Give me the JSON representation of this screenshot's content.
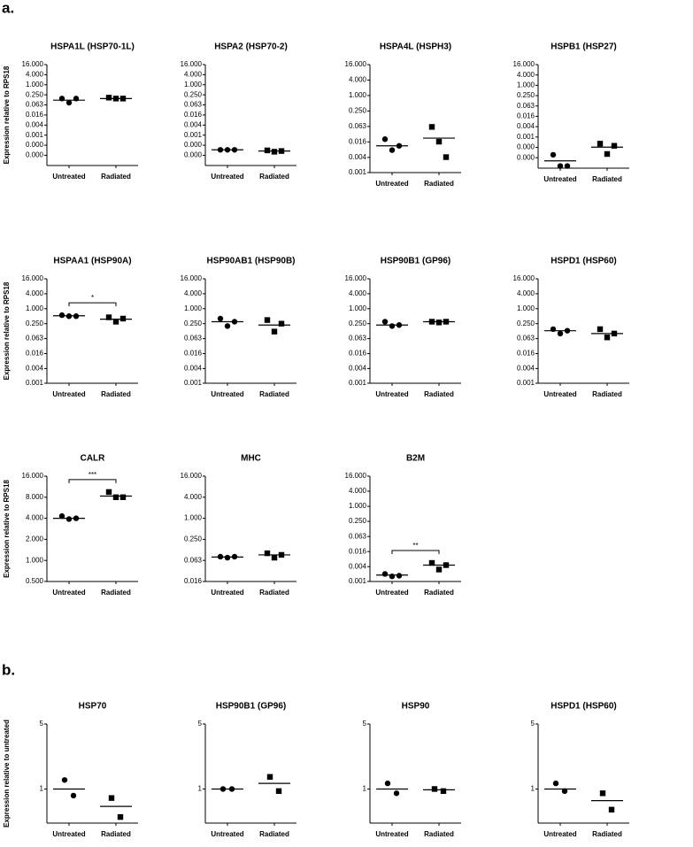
{
  "panel_labels": [
    "a.",
    "b."
  ],
  "chart_data": [
    {
      "type": "dot",
      "title": "HSPA1L (HSP70-1L)",
      "ylabel": "Expression relative to RPS18",
      "log": true,
      "ylim": [
        1.5e-05,
        16
      ],
      "yticks": [
        {
          "value": 16,
          "label": "16.000"
        },
        {
          "value": 4,
          "label": "4.000"
        },
        {
          "value": 1,
          "label": "1.000"
        },
        {
          "value": 0.25,
          "label": "0.250"
        },
        {
          "value": 0.0625,
          "label": "0.063"
        },
        {
          "value": 0.015625,
          "label": "0.016"
        },
        {
          "value": 0.00390625,
          "label": "0.004"
        },
        {
          "value": 0.0009765625,
          "label": "0.001"
        },
        {
          "value": 0.000244140625,
          "label": "0.000"
        },
        {
          "value": 6.103515625e-05,
          "label": "0.000"
        }
      ],
      "categories": [
        "Untreated",
        "Radiated"
      ],
      "points": [
        [
          0.15,
          0.085,
          0.15
        ],
        [
          0.17,
          0.15,
          0.15
        ]
      ],
      "means": [
        0.12,
        0.15
      ]
    },
    {
      "type": "dot",
      "title": "HSPA2 (HSP70-2)",
      "log": true,
      "ylim": [
        1.5e-05,
        16
      ],
      "yticks": [
        {
          "value": 16,
          "label": "16.000"
        },
        {
          "value": 4,
          "label": "4.000"
        },
        {
          "value": 1,
          "label": "1.000"
        },
        {
          "value": 0.25,
          "label": "0.250"
        },
        {
          "value": 0.0625,
          "label": "0.063"
        },
        {
          "value": 0.015625,
          "label": "0.016"
        },
        {
          "value": 0.00390625,
          "label": "0.004"
        },
        {
          "value": 0.0009765625,
          "label": "0.001"
        },
        {
          "value": 0.000244140625,
          "label": "0.000"
        },
        {
          "value": 6.103515625e-05,
          "label": "0.000"
        }
      ],
      "categories": [
        "Untreated",
        "Radiated"
      ],
      "points": [
        [
          0.00013,
          0.00013,
          0.00013
        ],
        [
          0.00012,
          0.0001,
          0.00011
        ]
      ],
      "means": [
        0.00013,
        0.00011
      ]
    },
    {
      "type": "dot",
      "title": "HSPA4L (HSPH3)",
      "log": true,
      "ylim": [
        0.001,
        16
      ],
      "yticks": [
        {
          "value": 16,
          "label": "16.000"
        },
        {
          "value": 4,
          "label": "4.000"
        },
        {
          "value": 1,
          "label": "1.000"
        },
        {
          "value": 0.25,
          "label": "0.250"
        },
        {
          "value": 0.0625,
          "label": "0.063"
        },
        {
          "value": 0.015625,
          "label": "0.016"
        },
        {
          "value": 0.00390625,
          "label": "0.004"
        },
        {
          "value": 0.001,
          "label": "0.001"
        }
      ],
      "categories": [
        "Untreated",
        "Radiated"
      ],
      "points": [
        [
          0.02,
          0.0075,
          0.011
        ],
        [
          0.06,
          0.016,
          0.004
        ]
      ],
      "means": [
        0.011,
        0.022
      ]
    },
    {
      "type": "dot",
      "title": "HSPB1 (HSP27)",
      "log": true,
      "ylim": [
        1.5e-05,
        16
      ],
      "yticks": [
        {
          "value": 16,
          "label": "16.000"
        },
        {
          "value": 4,
          "label": "4.000"
        },
        {
          "value": 1,
          "label": "1.000"
        },
        {
          "value": 0.25,
          "label": "0.250"
        },
        {
          "value": 0.0625,
          "label": "0.063"
        },
        {
          "value": 0.015625,
          "label": "0.016"
        },
        {
          "value": 0.00390625,
          "label": "0.004"
        },
        {
          "value": 0.0009765625,
          "label": "0.001"
        },
        {
          "value": 0.000244140625,
          "label": "0.000"
        },
        {
          "value": 6.103515625e-05,
          "label": "0.000"
        }
      ],
      "categories": [
        "Untreated",
        "Radiated"
      ],
      "points": [
        [
          9e-05,
          2e-05,
          2e-05
        ],
        [
          0.0004,
          0.0001,
          0.0003
        ]
      ],
      "means": [
        4e-05,
        0.00025
      ]
    },
    {
      "type": "dot",
      "title": "HSPAA1 (HSP90A)",
      "ylabel": "Expression relative to RPS18",
      "log": true,
      "ylim": [
        0.001,
        16
      ],
      "yticks": [
        {
          "value": 16,
          "label": "16.000"
        },
        {
          "value": 4,
          "label": "4.000"
        },
        {
          "value": 1,
          "label": "1.000"
        },
        {
          "value": 0.25,
          "label": "0.250"
        },
        {
          "value": 0.0625,
          "label": "0.063"
        },
        {
          "value": 0.015625,
          "label": "0.016"
        },
        {
          "value": 0.00390625,
          "label": "0.004"
        },
        {
          "value": 0.001,
          "label": "0.001"
        }
      ],
      "categories": [
        "Untreated",
        "Radiated"
      ],
      "points": [
        [
          0.55,
          0.5,
          0.5
        ],
        [
          0.45,
          0.3,
          0.4
        ]
      ],
      "means": [
        0.52,
        0.38
      ],
      "significance": "*"
    },
    {
      "type": "dot",
      "title": "HSP90AB1 (HSP90B)",
      "log": true,
      "ylim": [
        0.001,
        16
      ],
      "yticks": [
        {
          "value": 16,
          "label": "16.000"
        },
        {
          "value": 4,
          "label": "4.000"
        },
        {
          "value": 1,
          "label": "1.000"
        },
        {
          "value": 0.25,
          "label": "0.250"
        },
        {
          "value": 0.0625,
          "label": "0.063"
        },
        {
          "value": 0.015625,
          "label": "0.016"
        },
        {
          "value": 0.00390625,
          "label": "0.004"
        },
        {
          "value": 0.001,
          "label": "0.001"
        }
      ],
      "categories": [
        "Untreated",
        "Radiated"
      ],
      "points": [
        [
          0.4,
          0.2,
          0.3
        ],
        [
          0.35,
          0.12,
          0.25
        ]
      ],
      "means": [
        0.3,
        0.22
      ]
    },
    {
      "type": "dot",
      "title": "HSP90B1 (GP96)",
      "log": true,
      "ylim": [
        0.001,
        16
      ],
      "yticks": [
        {
          "value": 16,
          "label": "16.000"
        },
        {
          "value": 4,
          "label": "4.000"
        },
        {
          "value": 1,
          "label": "1.000"
        },
        {
          "value": 0.25,
          "label": "0.250"
        },
        {
          "value": 0.0625,
          "label": "0.063"
        },
        {
          "value": 0.015625,
          "label": "0.016"
        },
        {
          "value": 0.00390625,
          "label": "0.004"
        },
        {
          "value": 0.001,
          "label": "0.001"
        }
      ],
      "categories": [
        "Untreated",
        "Radiated"
      ],
      "points": [
        [
          0.3,
          0.2,
          0.22
        ],
        [
          0.3,
          0.28,
          0.3
        ]
      ],
      "means": [
        0.22,
        0.3
      ]
    },
    {
      "type": "dot",
      "title": "HSPD1 (HSP60)",
      "log": true,
      "ylim": [
        0.001,
        16
      ],
      "yticks": [
        {
          "value": 16,
          "label": "16.000"
        },
        {
          "value": 4,
          "label": "4.000"
        },
        {
          "value": 1,
          "label": "1.000"
        },
        {
          "value": 0.25,
          "label": "0.250"
        },
        {
          "value": 0.0625,
          "label": "0.063"
        },
        {
          "value": 0.015625,
          "label": "0.016"
        },
        {
          "value": 0.00390625,
          "label": "0.004"
        },
        {
          "value": 0.001,
          "label": "0.001"
        }
      ],
      "categories": [
        "Untreated",
        "Radiated"
      ],
      "points": [
        [
          0.15,
          0.1,
          0.13
        ],
        [
          0.15,
          0.07,
          0.1
        ]
      ],
      "means": [
        0.13,
        0.1
      ]
    },
    {
      "type": "dot",
      "title": "CALR",
      "ylabel": "Expression relative to RPS18",
      "log": true,
      "ylim": [
        0.5,
        16
      ],
      "yticks": [
        {
          "value": 16,
          "label": "16.000"
        },
        {
          "value": 8,
          "label": "8.000"
        },
        {
          "value": 4,
          "label": "4.000"
        },
        {
          "value": 2,
          "label": "2.000"
        },
        {
          "value": 1,
          "label": "1.000"
        },
        {
          "value": 0.5,
          "label": "0.500"
        }
      ],
      "categories": [
        "Untreated",
        "Radiated"
      ],
      "points": [
        [
          4.3,
          3.9,
          4.0
        ],
        [
          9.5,
          8,
          8
        ]
      ],
      "means": [
        4.0,
        8.3
      ],
      "significance": "***"
    },
    {
      "type": "dot",
      "title": "MHC",
      "log": true,
      "ylim": [
        0.015625,
        16
      ],
      "yticks": [
        {
          "value": 16,
          "label": "16.000"
        },
        {
          "value": 4,
          "label": "4.000"
        },
        {
          "value": 1,
          "label": "1.000"
        },
        {
          "value": 0.25,
          "label": "0.250"
        },
        {
          "value": 0.0625,
          "label": "0.063"
        },
        {
          "value": 0.015625,
          "label": "0.016"
        }
      ],
      "categories": [
        "Untreated",
        "Radiated"
      ],
      "points": [
        [
          0.08,
          0.075,
          0.08
        ],
        [
          0.1,
          0.075,
          0.09
        ]
      ],
      "means": [
        0.078,
        0.09
      ]
    },
    {
      "type": "dot",
      "title": "B2M",
      "log": true,
      "ylim": [
        0.001,
        16
      ],
      "yticks": [
        {
          "value": 16,
          "label": "16.000"
        },
        {
          "value": 4,
          "label": "4.000"
        },
        {
          "value": 1,
          "label": "1.000"
        },
        {
          "value": 0.25,
          "label": "0.250"
        },
        {
          "value": 0.0625,
          "label": "0.063"
        },
        {
          "value": 0.015625,
          "label": "0.016"
        },
        {
          "value": 0.00390625,
          "label": "0.004"
        },
        {
          "value": 0.001,
          "label": "0.001"
        }
      ],
      "categories": [
        "Untreated",
        "Radiated"
      ],
      "points": [
        [
          0.002,
          0.0016,
          0.0017
        ],
        [
          0.0055,
          0.003,
          0.0045
        ]
      ],
      "means": [
        0.0018,
        0.0045
      ],
      "significance": "**"
    },
    {
      "type": "dot",
      "title": "HSP70",
      "ylabel": "Expression relative to untreated",
      "log": true,
      "ylim": [
        0.43,
        5
      ],
      "yticks": [
        5,
        1
      ],
      "categories": [
        "Untreated",
        "Radiated"
      ],
      "points": [
        [
          1.25,
          0.85
        ],
        [
          0.8,
          0.5
        ]
      ],
      "means": [
        1.0,
        0.65
      ]
    },
    {
      "type": "dot",
      "title": "HSP90B1 (GP96)",
      "log": true,
      "ylim": [
        0.43,
        5
      ],
      "yticks": [
        5,
        1
      ],
      "categories": [
        "Untreated",
        "Radiated"
      ],
      "points": [
        [
          1,
          1
        ],
        [
          1.35,
          0.95
        ]
      ],
      "means": [
        1.0,
        1.15
      ]
    },
    {
      "type": "dot",
      "title": "HSP90",
      "log": true,
      "ylim": [
        0.43,
        5
      ],
      "yticks": [
        5,
        1
      ],
      "categories": [
        "Untreated",
        "Radiated"
      ],
      "points": [
        [
          1.15,
          0.9
        ],
        [
          1,
          0.95
        ]
      ],
      "means": [
        1.0,
        0.98
      ]
    },
    {
      "type": "dot",
      "title": "HSPD1 (HSP60)",
      "log": true,
      "ylim": [
        0.43,
        5
      ],
      "yticks": [
        5,
        1
      ],
      "categories": [
        "Untreated",
        "Radiated"
      ],
      "points": [
        [
          1.15,
          0.95
        ],
        [
          0.9,
          0.6
        ]
      ],
      "means": [
        1.0,
        0.75
      ]
    }
  ]
}
